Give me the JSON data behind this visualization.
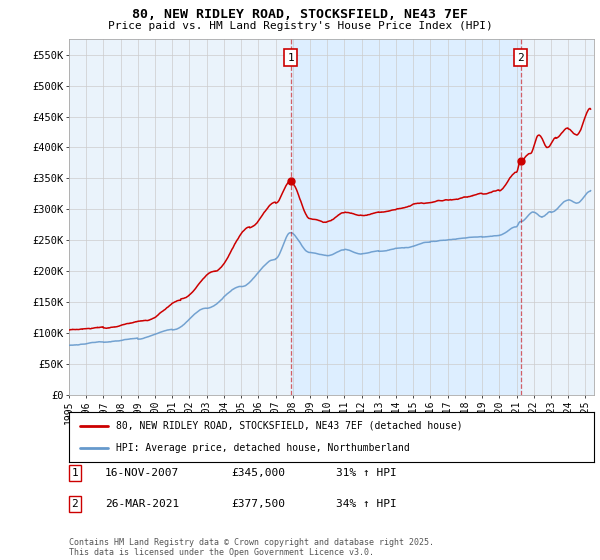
{
  "title": "80, NEW RIDLEY ROAD, STOCKSFIELD, NE43 7EF",
  "subtitle": "Price paid vs. HM Land Registry's House Price Index (HPI)",
  "yticks": [
    0,
    50000,
    100000,
    150000,
    200000,
    250000,
    300000,
    350000,
    400000,
    450000,
    500000,
    550000
  ],
  "ytick_labels": [
    "£0",
    "£50K",
    "£100K",
    "£150K",
    "£200K",
    "£250K",
    "£300K",
    "£350K",
    "£400K",
    "£450K",
    "£500K",
    "£550K"
  ],
  "ylim": [
    0,
    575000
  ],
  "red_color": "#cc0000",
  "blue_color": "#6699cc",
  "fill_color": "#ddeeff",
  "marker1_x": 2007.88,
  "marker1_y": 345000,
  "marker2_x": 2021.23,
  "marker2_y": 377500,
  "legend_line1": "80, NEW RIDLEY ROAD, STOCKSFIELD, NE43 7EF (detached house)",
  "legend_line2": "HPI: Average price, detached house, Northumberland",
  "footnote": "Contains HM Land Registry data © Crown copyright and database right 2025.\nThis data is licensed under the Open Government Licence v3.0.",
  "xmin": 1995.0,
  "xmax": 2025.5,
  "background": "#ffffff",
  "grid_color": "#cccccc",
  "chart_bg": "#eaf3fb"
}
